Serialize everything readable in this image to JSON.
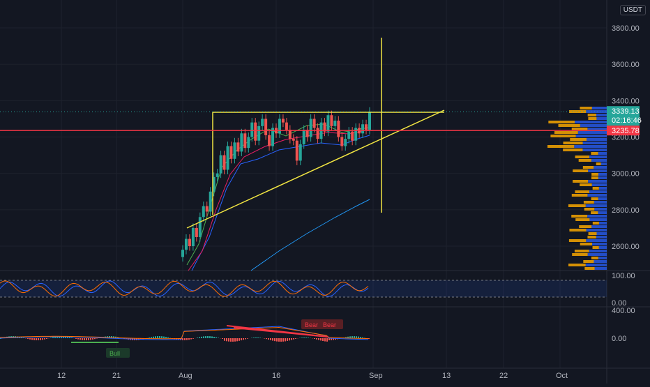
{
  "currency": "USDT",
  "price_axis": {
    "ticks": [
      {
        "label": "3800.00",
        "v": 3800
      },
      {
        "label": "3600.00",
        "v": 3600
      },
      {
        "label": "3400.00",
        "v": 3400
      },
      {
        "label": "3200.00",
        "v": 3200
      },
      {
        "label": "3000.00",
        "v": 3000
      },
      {
        "label": "2800.00",
        "v": 2800
      },
      {
        "label": "2600.00",
        "v": 2600
      }
    ]
  },
  "last_price": {
    "label": "3339.13",
    "value": 3339.13,
    "countdown": "02:16:46",
    "color": "#26a69a"
  },
  "red_level": {
    "label": "3235.78",
    "value": 3235.78,
    "color": "#f23645"
  },
  "stoch_axis": {
    "ticks": [
      {
        "label": "100.00",
        "v": 100
      },
      {
        "label": "0.00",
        "v": 0
      }
    ]
  },
  "macd_axis": {
    "ticks": [
      {
        "label": "400.00",
        "v": 400
      },
      {
        "label": "0.00",
        "v": 0
      }
    ]
  },
  "time_axis": {
    "labels": [
      "12",
      "21",
      "Aug",
      "16",
      "Sep",
      "13",
      "22",
      "Oct"
    ]
  },
  "signals": {
    "bull": "Bull",
    "bear1": "Bear",
    "bear2": "Bear"
  },
  "chart_data": {
    "type": "candlestick",
    "ylim": [
      2520,
      3870
    ],
    "series": [
      {
        "name": "close",
        "values": [
          2580,
          2640,
          2600,
          2700,
          2650,
          2760,
          2820,
          2790,
          2900,
          2980,
          3000,
          3100,
          3020,
          3150,
          3080,
          3170,
          3120,
          3220,
          3140,
          3200,
          3280,
          3180,
          3260,
          3300,
          3210,
          3150,
          3250,
          3220,
          3300,
          3280,
          3240,
          3190,
          3180,
          3070,
          3160,
          3240,
          3200,
          3300,
          3250,
          3190,
          3280,
          3230,
          3320,
          3260,
          3290,
          3200,
          3150,
          3190,
          3230,
          3180,
          3250,
          3220,
          3270,
          3240,
          3339
        ]
      }
    ],
    "colors": {
      "up": "#26a69a",
      "down": "#ef5350",
      "accent": "#f0e442"
    }
  }
}
